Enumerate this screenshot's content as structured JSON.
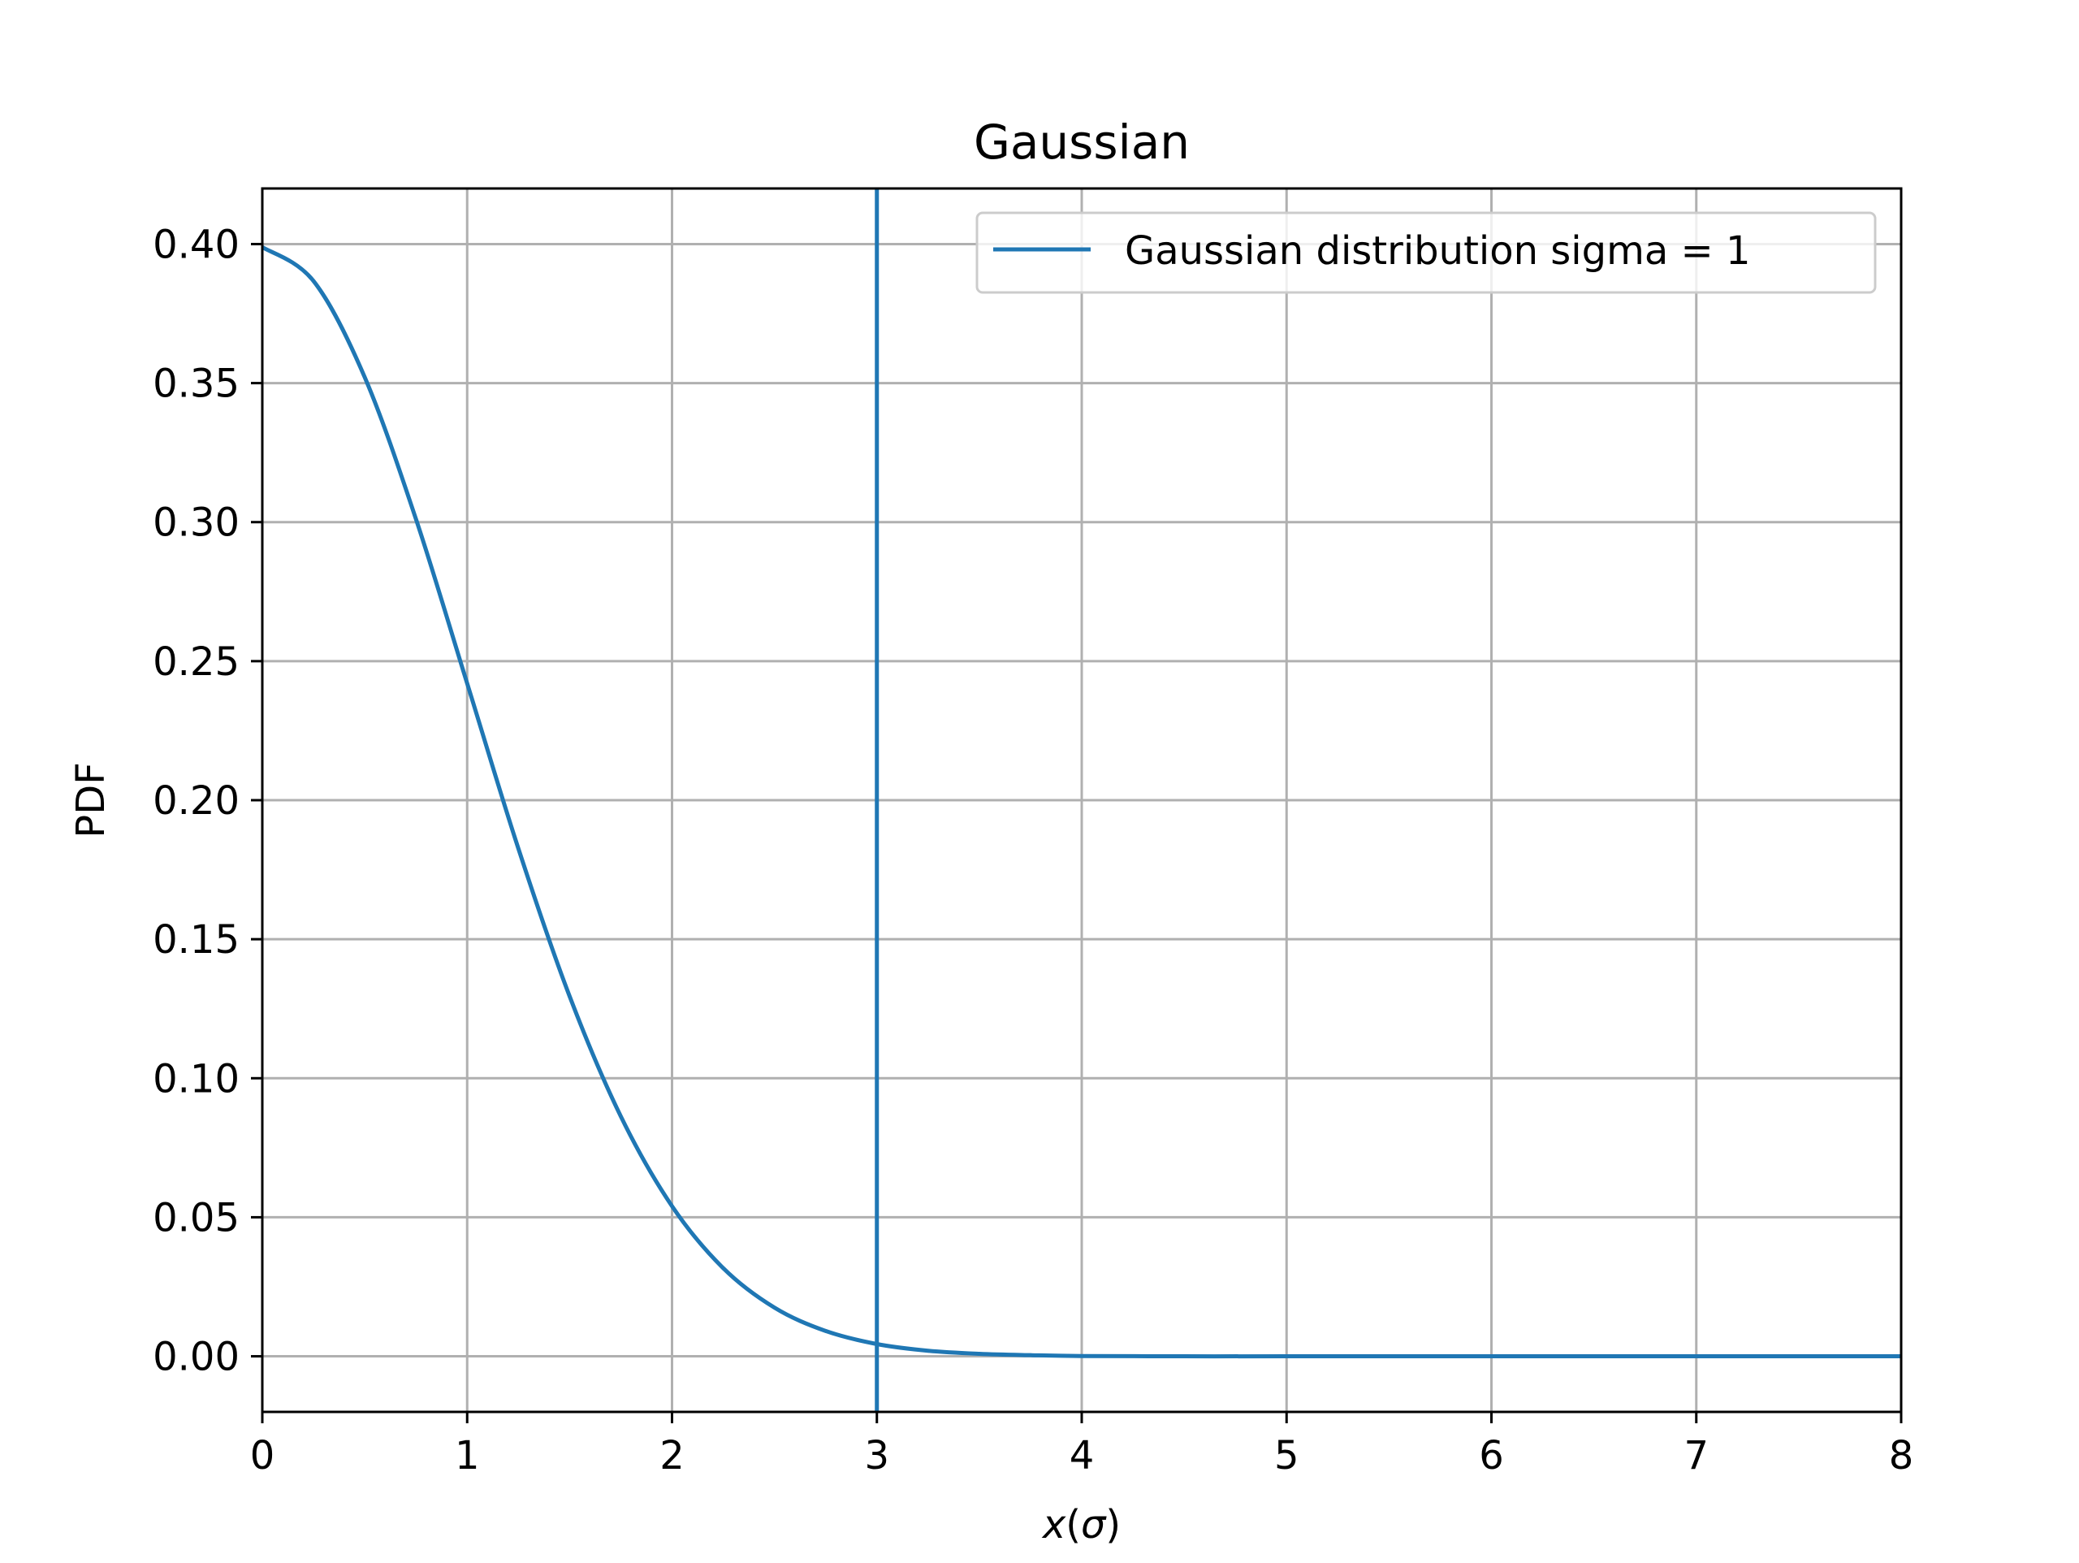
{
  "chart_data": {
    "type": "line",
    "title": "Gaussian",
    "xlabel_var": "x",
    "xlabel_open": "(",
    "xlabel_sigma": "σ",
    "xlabel_close": ")",
    "ylabel": "PDF",
    "xlim": [
      0,
      8
    ],
    "ylim": [
      -0.02,
      0.42
    ],
    "grid": true,
    "legend_position": "upper-right",
    "xticks": [
      0,
      1,
      2,
      3,
      4,
      5,
      6,
      7,
      8
    ],
    "xtick_labels": [
      "0",
      "1",
      "2",
      "3",
      "4",
      "5",
      "6",
      "7",
      "8"
    ],
    "yticks": [
      0.0,
      0.05,
      0.1,
      0.15,
      0.2,
      0.25,
      0.3,
      0.35,
      0.4
    ],
    "ytick_labels": [
      "0.00",
      "0.05",
      "0.10",
      "0.15",
      "0.20",
      "0.25",
      "0.30",
      "0.35",
      "0.40"
    ],
    "series": [
      {
        "name": "Gaussian distribution sigma = 1",
        "color": "#1f77b4",
        "x": [
          0,
          0.25,
          0.5,
          0.75,
          1,
          1.25,
          1.5,
          1.75,
          2,
          2.25,
          2.5,
          2.75,
          3,
          3.25,
          3.5,
          3.75,
          4,
          4.5,
          5,
          6,
          7,
          8
        ],
        "y": [
          0.3989,
          0.3867,
          0.3521,
          0.3011,
          0.242,
          0.1826,
          0.1295,
          0.0863,
          0.054,
          0.0317,
          0.0175,
          0.0091,
          0.0044,
          0.002,
          0.0009,
          0.0004,
          0.0001,
          0.0,
          0.0,
          0.0,
          0.0,
          0.0
        ]
      }
    ],
    "vertical_line": {
      "x": 3,
      "color": "#1f77b4"
    }
  }
}
